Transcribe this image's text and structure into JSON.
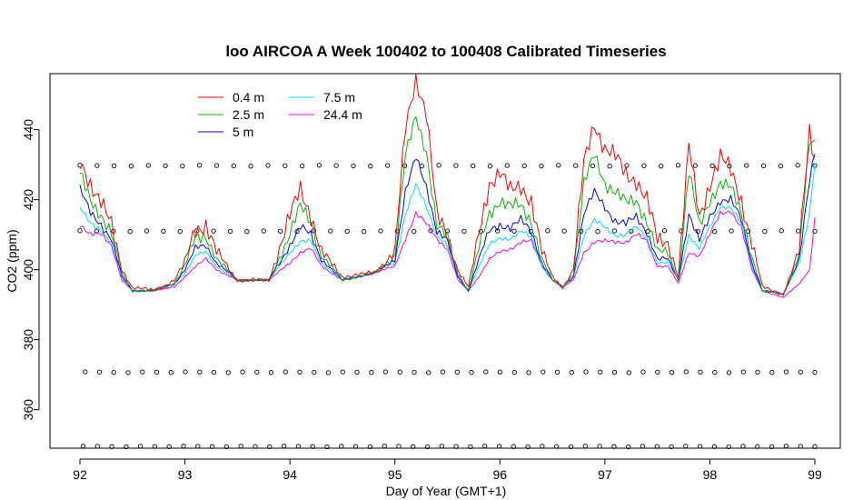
{
  "chart_data": {
    "type": "line",
    "title": "loo AIRCOA A  Week 100402 to 100408  Calibrated Timeseries",
    "xlabel": "Day of Year (GMT+1)",
    "ylabel": "CO2 (ppm)",
    "xlim": [
      91.7,
      99.2
    ],
    "ylim": [
      349,
      456
    ],
    "x_ticks": [
      92,
      93,
      94,
      95,
      96,
      97,
      98,
      99
    ],
    "y_ticks": [
      360,
      380,
      400,
      420,
      440
    ],
    "x_tick_labels": [
      "92",
      "93",
      "94",
      "95",
      "96",
      "97",
      "98",
      "99"
    ],
    "y_tick_labels": [
      "360",
      "380",
      "400",
      "420",
      "440"
    ],
    "grid": false,
    "legend_position": "top-left",
    "legend": [
      {
        "label": "0.4 m",
        "color": "#ff0000"
      },
      {
        "label": "2.5 m",
        "color": "#00bb00"
      },
      {
        "label": "5 m",
        "color": "#0000ff"
      },
      {
        "label": "7.5 m",
        "color": "#00e5ee"
      },
      {
        "label": "24.4 m",
        "color": "#ff00ff"
      }
    ],
    "series": [
      {
        "name": "0.4 m",
        "color": "#ff0000",
        "values": [
          [
            92.0,
            430
          ],
          [
            92.1,
            425
          ],
          [
            92.2,
            420
          ],
          [
            92.3,
            412
          ],
          [
            92.4,
            400
          ],
          [
            92.5,
            395
          ],
          [
            92.7,
            394
          ],
          [
            92.9,
            397
          ],
          [
            93.0,
            402
          ],
          [
            93.1,
            412
          ],
          [
            93.2,
            413
          ],
          [
            93.3,
            405
          ],
          [
            93.5,
            397
          ],
          [
            93.8,
            397
          ],
          [
            94.0,
            415
          ],
          [
            94.1,
            423
          ],
          [
            94.2,
            416
          ],
          [
            94.3,
            405
          ],
          [
            94.5,
            398
          ],
          [
            94.8,
            399
          ],
          [
            95.0,
            405
          ],
          [
            95.1,
            440
          ],
          [
            95.2,
            455
          ],
          [
            95.3,
            445
          ],
          [
            95.4,
            415
          ],
          [
            95.5,
            410
          ],
          [
            95.6,
            400
          ],
          [
            95.7,
            395
          ],
          [
            95.8,
            410
          ],
          [
            95.9,
            425
          ],
          [
            96.0,
            428
          ],
          [
            96.1,
            422
          ],
          [
            96.2,
            424
          ],
          [
            96.3,
            420
          ],
          [
            96.4,
            405
          ],
          [
            96.5,
            398
          ],
          [
            96.6,
            395
          ],
          [
            96.7,
            400
          ],
          [
            96.8,
            430
          ],
          [
            96.9,
            442
          ],
          [
            97.0,
            435
          ],
          [
            97.1,
            432
          ],
          [
            97.2,
            427
          ],
          [
            97.3,
            426
          ],
          [
            97.4,
            420
          ],
          [
            97.5,
            408
          ],
          [
            97.6,
            408
          ],
          [
            97.7,
            398
          ],
          [
            97.8,
            435
          ],
          [
            97.9,
            415
          ],
          [
            98.0,
            425
          ],
          [
            98.1,
            432
          ],
          [
            98.2,
            428
          ],
          [
            98.3,
            420
          ],
          [
            98.4,
            408
          ],
          [
            98.5,
            395
          ],
          [
            98.7,
            393
          ],
          [
            98.85,
            405
          ],
          [
            98.95,
            440
          ],
          [
            99.0,
            432
          ]
        ]
      },
      {
        "name": "2.5 m",
        "color": "#00bb00",
        "values": [
          [
            92.0,
            427
          ],
          [
            92.1,
            420
          ],
          [
            92.2,
            416
          ],
          [
            92.3,
            410
          ],
          [
            92.4,
            399
          ],
          [
            92.5,
            394
          ],
          [
            92.7,
            394
          ],
          [
            92.9,
            396
          ],
          [
            93.0,
            401
          ],
          [
            93.1,
            409
          ],
          [
            93.2,
            410
          ],
          [
            93.3,
            403
          ],
          [
            93.5,
            397
          ],
          [
            93.8,
            397
          ],
          [
            94.0,
            410
          ],
          [
            94.1,
            418
          ],
          [
            94.2,
            414
          ],
          [
            94.3,
            404
          ],
          [
            94.5,
            397
          ],
          [
            94.8,
            399
          ],
          [
            95.0,
            404
          ],
          [
            95.1,
            432
          ],
          [
            95.2,
            444
          ],
          [
            95.3,
            434
          ],
          [
            95.4,
            412
          ],
          [
            95.5,
            409
          ],
          [
            95.6,
            399
          ],
          [
            95.7,
            394
          ],
          [
            95.8,
            406
          ],
          [
            95.9,
            416
          ],
          [
            96.0,
            420
          ],
          [
            96.1,
            418
          ],
          [
            96.2,
            418
          ],
          [
            96.3,
            414
          ],
          [
            96.4,
            403
          ],
          [
            96.5,
            397
          ],
          [
            96.6,
            395
          ],
          [
            96.7,
            399
          ],
          [
            96.8,
            424
          ],
          [
            96.9,
            433
          ],
          [
            97.0,
            425
          ],
          [
            97.1,
            422
          ],
          [
            97.2,
            419
          ],
          [
            97.3,
            420
          ],
          [
            97.4,
            414
          ],
          [
            97.5,
            405
          ],
          [
            97.6,
            405
          ],
          [
            97.7,
            397
          ],
          [
            97.8,
            428
          ],
          [
            97.9,
            412
          ],
          [
            98.0,
            420
          ],
          [
            98.1,
            425
          ],
          [
            98.2,
            423
          ],
          [
            98.3,
            416
          ],
          [
            98.4,
            404
          ],
          [
            98.5,
            394
          ],
          [
            98.7,
            393
          ],
          [
            98.85,
            404
          ],
          [
            98.95,
            436
          ],
          [
            99.0,
            437
          ]
        ]
      },
      {
        "name": "5 m",
        "color": "#0000ff",
        "values": [
          [
            92.0,
            423
          ],
          [
            92.1,
            416
          ],
          [
            92.2,
            413
          ],
          [
            92.3,
            409
          ],
          [
            92.4,
            398
          ],
          [
            92.5,
            394
          ],
          [
            92.7,
            394
          ],
          [
            92.9,
            396
          ],
          [
            93.0,
            400
          ],
          [
            93.1,
            406
          ],
          [
            93.2,
            407
          ],
          [
            93.3,
            402
          ],
          [
            93.5,
            397
          ],
          [
            93.8,
            397
          ],
          [
            94.0,
            407
          ],
          [
            94.1,
            412
          ],
          [
            94.2,
            410
          ],
          [
            94.3,
            403
          ],
          [
            94.5,
            397
          ],
          [
            94.8,
            399
          ],
          [
            95.0,
            403
          ],
          [
            95.1,
            422
          ],
          [
            95.2,
            432
          ],
          [
            95.3,
            424
          ],
          [
            95.4,
            411
          ],
          [
            95.5,
            408
          ],
          [
            95.6,
            398
          ],
          [
            95.7,
            394
          ],
          [
            95.8,
            403
          ],
          [
            95.9,
            411
          ],
          [
            96.0,
            413
          ],
          [
            96.1,
            412
          ],
          [
            96.2,
            414
          ],
          [
            96.3,
            411
          ],
          [
            96.4,
            402
          ],
          [
            96.5,
            397
          ],
          [
            96.6,
            395
          ],
          [
            96.7,
            398
          ],
          [
            96.8,
            416
          ],
          [
            96.9,
            422
          ],
          [
            97.0,
            418
          ],
          [
            97.1,
            414
          ],
          [
            97.2,
            413
          ],
          [
            97.3,
            415
          ],
          [
            97.4,
            411
          ],
          [
            97.5,
            403
          ],
          [
            97.6,
            403
          ],
          [
            97.7,
            397
          ],
          [
            97.8,
            416
          ],
          [
            97.9,
            408
          ],
          [
            98.0,
            415
          ],
          [
            98.1,
            420
          ],
          [
            98.2,
            420
          ],
          [
            98.3,
            414
          ],
          [
            98.4,
            402
          ],
          [
            98.5,
            394
          ],
          [
            98.7,
            393
          ],
          [
            98.85,
            403
          ],
          [
            98.95,
            425
          ],
          [
            99.0,
            433
          ]
        ]
      },
      {
        "name": "7.5 m",
        "color": "#00e5ee",
        "values": [
          [
            92.0,
            418
          ],
          [
            92.1,
            413
          ],
          [
            92.2,
            411
          ],
          [
            92.3,
            408
          ],
          [
            92.4,
            398
          ],
          [
            92.5,
            394
          ],
          [
            92.7,
            394
          ],
          [
            92.9,
            396
          ],
          [
            93.0,
            399
          ],
          [
            93.1,
            404
          ],
          [
            93.2,
            405
          ],
          [
            93.3,
            401
          ],
          [
            93.5,
            397
          ],
          [
            93.8,
            397
          ],
          [
            94.0,
            405
          ],
          [
            94.1,
            408
          ],
          [
            94.2,
            408
          ],
          [
            94.3,
            402
          ],
          [
            94.5,
            397
          ],
          [
            94.8,
            399
          ],
          [
            95.0,
            402
          ],
          [
            95.1,
            416
          ],
          [
            95.2,
            424
          ],
          [
            95.3,
            418
          ],
          [
            95.4,
            410
          ],
          [
            95.5,
            407
          ],
          [
            95.6,
            398
          ],
          [
            95.7,
            394
          ],
          [
            95.8,
            401
          ],
          [
            95.9,
            407
          ],
          [
            96.0,
            409
          ],
          [
            96.1,
            409
          ],
          [
            96.2,
            411
          ],
          [
            96.3,
            409
          ],
          [
            96.4,
            401
          ],
          [
            96.5,
            397
          ],
          [
            96.6,
            395
          ],
          [
            96.7,
            398
          ],
          [
            96.8,
            410
          ],
          [
            96.9,
            414
          ],
          [
            97.0,
            412
          ],
          [
            97.1,
            410
          ],
          [
            97.2,
            410
          ],
          [
            97.3,
            412
          ],
          [
            97.4,
            409
          ],
          [
            97.5,
            402
          ],
          [
            97.6,
            402
          ],
          [
            97.7,
            397
          ],
          [
            97.8,
            410
          ],
          [
            97.9,
            406
          ],
          [
            98.0,
            412
          ],
          [
            98.1,
            418
          ],
          [
            98.2,
            418
          ],
          [
            98.3,
            413
          ],
          [
            98.4,
            401
          ],
          [
            98.5,
            394
          ],
          [
            98.7,
            393
          ],
          [
            98.85,
            402
          ],
          [
            98.95,
            416
          ],
          [
            99.0,
            430
          ]
        ]
      },
      {
        "name": "24.4 m",
        "color": "#ff00ff",
        "values": [
          [
            92.0,
            413
          ],
          [
            92.1,
            410
          ],
          [
            92.2,
            410
          ],
          [
            92.3,
            407
          ],
          [
            92.4,
            397
          ],
          [
            92.5,
            394
          ],
          [
            92.7,
            394
          ],
          [
            92.9,
            395
          ],
          [
            93.0,
            398
          ],
          [
            93.1,
            401
          ],
          [
            93.2,
            403
          ],
          [
            93.3,
            400
          ],
          [
            93.5,
            397
          ],
          [
            93.8,
            397
          ],
          [
            94.0,
            402
          ],
          [
            94.1,
            405
          ],
          [
            94.2,
            406
          ],
          [
            94.3,
            401
          ],
          [
            94.5,
            397
          ],
          [
            94.8,
            399
          ],
          [
            95.0,
            401
          ],
          [
            95.1,
            409
          ],
          [
            95.2,
            416
          ],
          [
            95.3,
            413
          ],
          [
            95.4,
            409
          ],
          [
            95.5,
            406
          ],
          [
            95.6,
            397
          ],
          [
            95.7,
            394
          ],
          [
            95.8,
            398
          ],
          [
            95.9,
            403
          ],
          [
            96.0,
            405
          ],
          [
            96.1,
            406
          ],
          [
            96.2,
            408
          ],
          [
            96.3,
            408
          ],
          [
            96.4,
            401
          ],
          [
            96.5,
            397
          ],
          [
            96.6,
            395
          ],
          [
            96.7,
            397
          ],
          [
            96.8,
            405
          ],
          [
            96.9,
            408
          ],
          [
            97.0,
            408
          ],
          [
            97.1,
            408
          ],
          [
            97.2,
            408
          ],
          [
            97.3,
            410
          ],
          [
            97.4,
            408
          ],
          [
            97.5,
            401
          ],
          [
            97.6,
            401
          ],
          [
            97.7,
            396
          ],
          [
            97.8,
            405
          ],
          [
            97.9,
            404
          ],
          [
            98.0,
            410
          ],
          [
            98.1,
            416
          ],
          [
            98.2,
            417
          ],
          [
            98.3,
            412
          ],
          [
            98.4,
            400
          ],
          [
            98.5,
            394
          ],
          [
            98.7,
            392
          ],
          [
            98.85,
            396
          ],
          [
            98.95,
            400
          ],
          [
            99.0,
            415
          ]
        ]
      }
    ],
    "marker_rows": [
      {
        "y": 429.7,
        "x_start": 92.0,
        "x_end": 99.0,
        "count": 44
      },
      {
        "y": 411.0,
        "x_start": 92.0,
        "x_end": 99.0,
        "count": 45
      },
      {
        "y": 370.7,
        "x_start": 92.05,
        "x_end": 99.0,
        "count": 52
      },
      {
        "y": 349.5,
        "x_start": 92.03,
        "x_end": 99.0,
        "count": 52
      }
    ]
  }
}
